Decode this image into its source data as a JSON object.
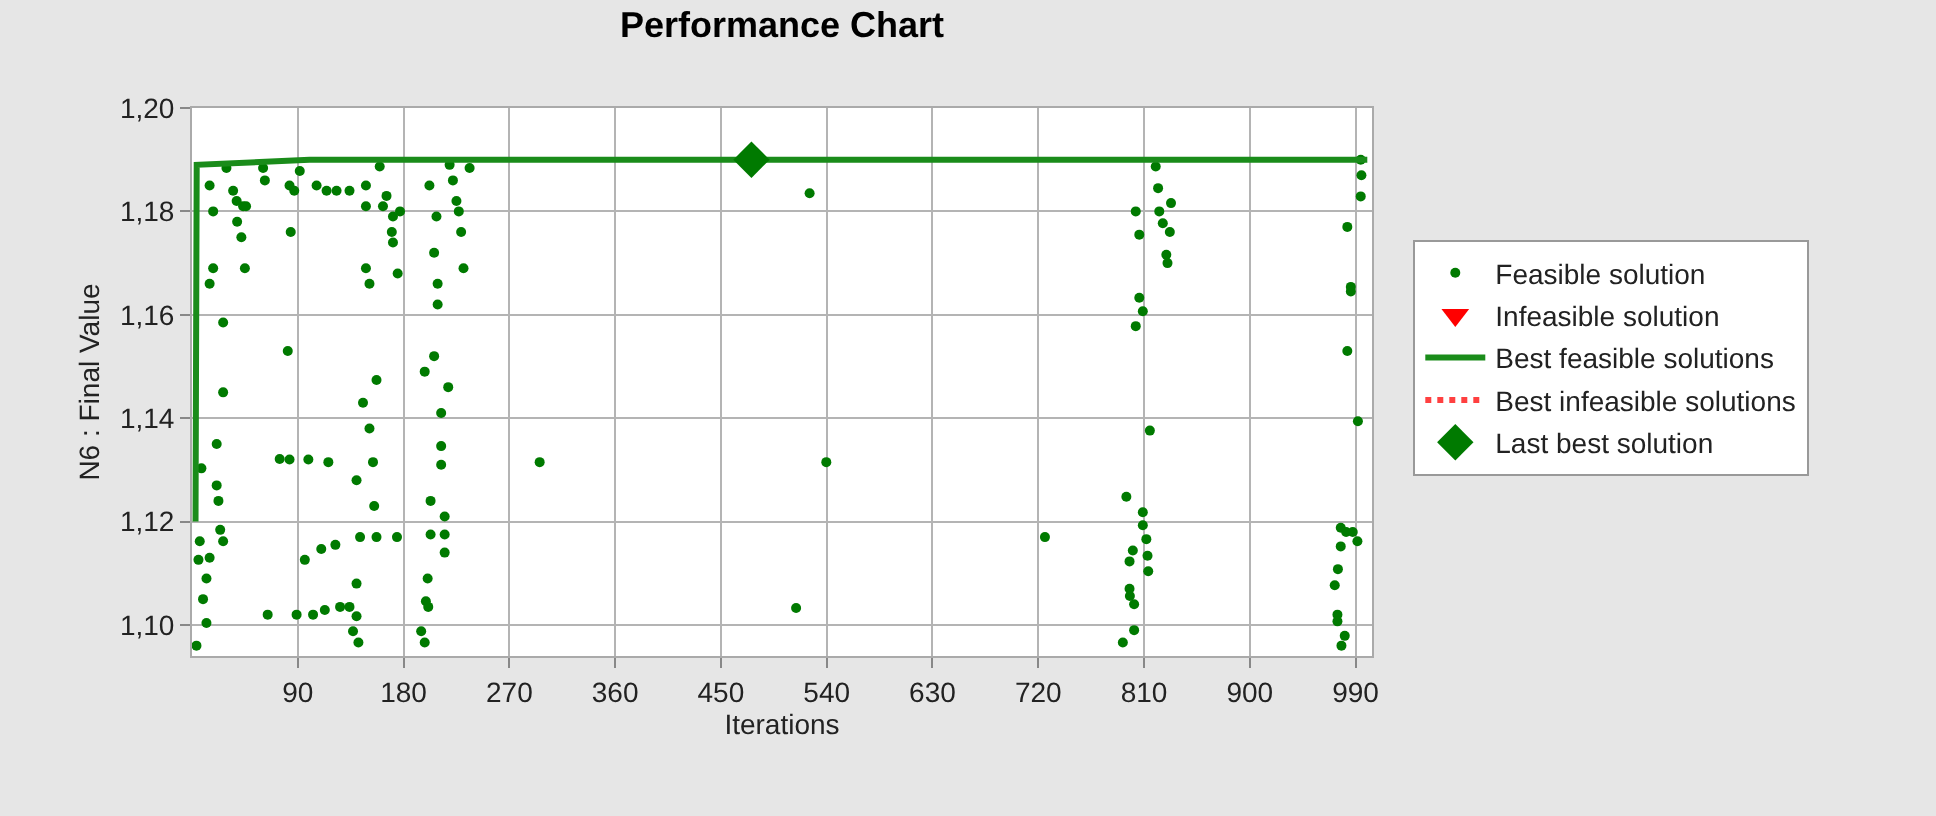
{
  "chart_data": {
    "type": "scatter",
    "title": "Performance Chart",
    "xlabel": "Iterations",
    "ylabel": "N6 : Final Value",
    "xlim": [
      0,
      1004
    ],
    "xticks": [
      90,
      180,
      270,
      360,
      450,
      540,
      630,
      720,
      810,
      900,
      990
    ],
    "ylim": [
      1.094,
      1.2
    ],
    "yticks": [
      {
        "value": 1.1,
        "label": "1,10"
      },
      {
        "value": 1.12,
        "label": "1,12"
      },
      {
        "value": 1.14,
        "label": "1,14"
      },
      {
        "value": 1.16,
        "label": "1,16"
      },
      {
        "value": 1.18,
        "label": "1,18"
      },
      {
        "value": 1.2,
        "label": "1,20"
      }
    ],
    "grid": true,
    "legend": "right",
    "series": [
      {
        "name": "Feasible solution",
        "marker": "circle",
        "color": "#007a00",
        "x": [
          29.3,
          60.5,
          91.7,
          159.7,
          219.2,
          236.2,
          15,
          18,
          35,
          38,
          43.5,
          46,
          62,
          83,
          87,
          106,
          114.5,
          123,
          134,
          148,
          148,
          165.5,
          162.5,
          171,
          177,
          170,
          171,
          202,
          208,
          222,
          225,
          227,
          229,
          231,
          206,
          209,
          209,
          38.4,
          42,
          18,
          15,
          45,
          84,
          148,
          151,
          175,
          26.5,
          81.5,
          26.5,
          157,
          145.5,
          151,
          206,
          198,
          218,
          212,
          21,
          8,
          21,
          22.5,
          74.6,
          83,
          99,
          116,
          140,
          154,
          155,
          212,
          212,
          203,
          215,
          24,
          26.5,
          6.6,
          5.5,
          15,
          12.3,
          9.4,
          12.3,
          3.8,
          64.4,
          89,
          103,
          113,
          126,
          134,
          140,
          137,
          141.6,
          96,
          110,
          122,
          143,
          157,
          174.4,
          140,
          203,
          215,
          215,
          200.5,
          199,
          201,
          195,
          198,
          295.8,
          525.5,
          539.7,
          514,
          725.7,
          820,
          822,
          803,
          806,
          823,
          833,
          826,
          832,
          829,
          830,
          806,
          809,
          803,
          815,
          795,
          809,
          809,
          800.5,
          797.7,
          812,
          813,
          813.6,
          797.7,
          798,
          801.6,
          801.6,
          792,
          994.4,
          995,
          994.4,
          983,
          986,
          986,
          983,
          992,
          977.4,
          982,
          987.6,
          991.6,
          977.4,
          975,
          972.3,
          974.6,
          974.6,
          980.8,
          978
        ],
        "values": [
          1.1884,
          1.1884,
          1.1878,
          1.1887,
          1.189,
          1.1884,
          1.185,
          1.18,
          1.184,
          1.182,
          1.181,
          1.181,
          1.186,
          1.185,
          1.184,
          1.185,
          1.184,
          1.184,
          1.184,
          1.185,
          1.181,
          1.183,
          1.181,
          1.179,
          1.18,
          1.176,
          1.174,
          1.185,
          1.179,
          1.186,
          1.182,
          1.18,
          1.176,
          1.169,
          1.172,
          1.166,
          1.162,
          1.178,
          1.175,
          1.169,
          1.166,
          1.169,
          1.176,
          1.169,
          1.166,
          1.168,
          1.1585,
          1.153,
          1.145,
          1.1474,
          1.143,
          1.138,
          1.152,
          1.149,
          1.146,
          1.141,
          1.135,
          1.1303,
          1.127,
          1.124,
          1.1321,
          1.132,
          1.132,
          1.1315,
          1.128,
          1.1315,
          1.123,
          1.1346,
          1.131,
          1.124,
          1.121,
          1.1184,
          1.1162,
          1.1162,
          1.1126,
          1.113,
          1.109,
          1.105,
          1.1004,
          1.096,
          1.102,
          1.102,
          1.102,
          1.1029,
          1.1035,
          1.1035,
          1.1017,
          1.0988,
          1.0966,
          1.1126,
          1.1147,
          1.1155,
          1.117,
          1.117,
          1.117,
          1.108,
          1.1175,
          1.1175,
          1.114,
          1.109,
          1.1046,
          1.1035,
          1.0988,
          1.0966,
          1.1315,
          1.1835,
          1.1315,
          1.1033,
          1.117,
          1.1887,
          1.1845,
          1.18,
          1.1755,
          1.18,
          1.1816,
          1.1777,
          1.176,
          1.1716,
          1.17,
          1.1633,
          1.1607,
          1.1578,
          1.1376,
          1.1248,
          1.1218,
          1.1193,
          1.1144,
          1.1123,
          1.1166,
          1.1134,
          1.1104,
          1.107,
          1.1056,
          1.104,
          1.099,
          1.0966,
          1.19,
          1.187,
          1.1829,
          1.177,
          1.1654,
          1.1645,
          1.153,
          1.1394,
          1.1188,
          1.118,
          1.118,
          1.1162,
          1.1152,
          1.1108,
          1.1077,
          1.102,
          1.1007,
          1.0979,
          1.096
        ]
      },
      {
        "name": "Infeasible solution",
        "marker": "triangle",
        "color": "#ff0000"
      },
      {
        "name": "Best feasible solutions",
        "type": "line",
        "line_style": "solid",
        "color": "#1a8c1a",
        "x": [
          3,
          4,
          100,
          1000
        ],
        "values": [
          1.12,
          1.189,
          1.19,
          1.19
        ]
      },
      {
        "name": "Best infeasible solutions",
        "type": "line",
        "line_style": "dotted",
        "color": "#ff4040"
      },
      {
        "name": "Last best solution",
        "marker": "diamond",
        "color": "#007a00",
        "x": [
          476
        ],
        "values": [
          1.19
        ]
      }
    ]
  }
}
